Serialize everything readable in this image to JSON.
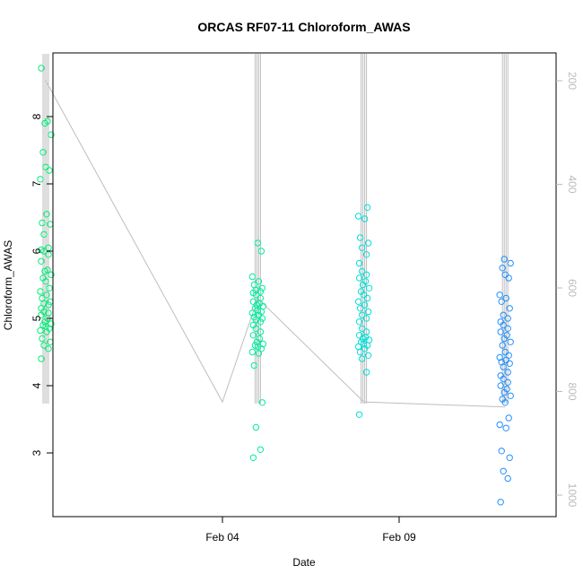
{
  "chart_data": {
    "type": "scatter",
    "title": "ORCAS RF07-11 Chloroform_AWAS",
    "xlabel": "Date",
    "ylabel": "Chloroform_AWAS",
    "x_ticks": [
      "Feb 04",
      "Feb 09"
    ],
    "y_ticks": [
      "3",
      "4",
      "5",
      "6",
      "7",
      "8"
    ],
    "y_right_ticks": [
      "200",
      "400",
      "600",
      "800",
      "1000"
    ],
    "grid": false,
    "colors": {
      "altitude_line": "#bebebe",
      "rf07": "#00ee77",
      "rf08": "#00eea0",
      "rf09": "#00e0d8",
      "rf10": "#1e90ff"
    },
    "series": [
      {
        "x": "2016-01-30",
        "values": [
          4.4,
          4.55,
          4.6,
          4.65,
          4.7,
          4.8,
          4.82,
          4.85,
          4.88,
          4.9,
          4.92,
          4.95,
          5.0,
          5.05,
          5.08,
          5.1,
          5.15,
          5.2,
          5.22,
          5.25,
          5.3,
          5.35,
          5.4,
          5.45,
          5.55,
          5.6,
          5.65,
          5.7,
          5.72,
          5.85,
          5.95,
          6.0,
          6.02,
          6.05,
          6.25,
          6.4,
          6.42,
          6.55,
          7.07,
          7.2,
          7.25,
          7.47,
          7.73,
          7.9,
          7.93,
          8.72
        ]
      },
      {
        "x": "2016-02-05",
        "values": [
          2.93,
          3.05,
          3.38,
          3.75,
          4.3,
          4.48,
          4.5,
          4.55,
          4.58,
          4.6,
          4.62,
          4.65,
          4.7,
          4.75,
          4.8,
          4.85,
          4.9,
          4.95,
          4.98,
          5.0,
          5.02,
          5.05,
          5.08,
          5.1,
          5.12,
          5.15,
          5.18,
          5.2,
          5.22,
          5.25,
          5.3,
          5.35,
          5.38,
          5.4,
          5.42,
          5.45,
          5.5,
          5.55,
          5.62,
          6.0,
          6.12
        ]
      },
      {
        "x": "2016-02-08",
        "values": [
          3.57,
          4.2,
          4.4,
          4.45,
          4.5,
          4.55,
          4.58,
          4.6,
          4.62,
          4.65,
          4.68,
          4.7,
          4.72,
          4.75,
          4.8,
          4.85,
          4.95,
          5.0,
          5.05,
          5.1,
          5.15,
          5.2,
          5.25,
          5.3,
          5.35,
          5.4,
          5.45,
          5.5,
          5.55,
          5.6,
          5.65,
          5.7,
          5.82,
          5.95,
          6.05,
          6.12,
          6.2,
          6.48,
          6.52,
          6.65
        ]
      },
      {
        "x": "2016-02-12",
        "values": [
          2.27,
          2.62,
          2.73,
          2.93,
          3.03,
          3.37,
          3.42,
          3.52,
          3.75,
          3.8,
          3.85,
          3.9,
          3.95,
          4.0,
          4.05,
          4.1,
          4.15,
          4.2,
          4.28,
          4.33,
          4.35,
          4.38,
          4.42,
          4.45,
          4.5,
          4.6,
          4.65,
          4.7,
          4.75,
          4.8,
          4.85,
          4.9,
          4.95,
          5.0,
          5.05,
          5.15,
          5.25,
          5.3,
          5.35,
          5.6,
          5.65,
          5.75,
          5.82,
          5.88
        ]
      }
    ],
    "altitude_profile": [
      {
        "date": "2016-01-30",
        "altitude": 200
      },
      {
        "date": "2016-02-04",
        "altitude": 820
      },
      {
        "date": "2016-02-05",
        "altitude": 620
      },
      {
        "date": "2016-02-08",
        "altitude": 820
      },
      {
        "date": "2016-02-12",
        "altitude": 830
      }
    ]
  }
}
